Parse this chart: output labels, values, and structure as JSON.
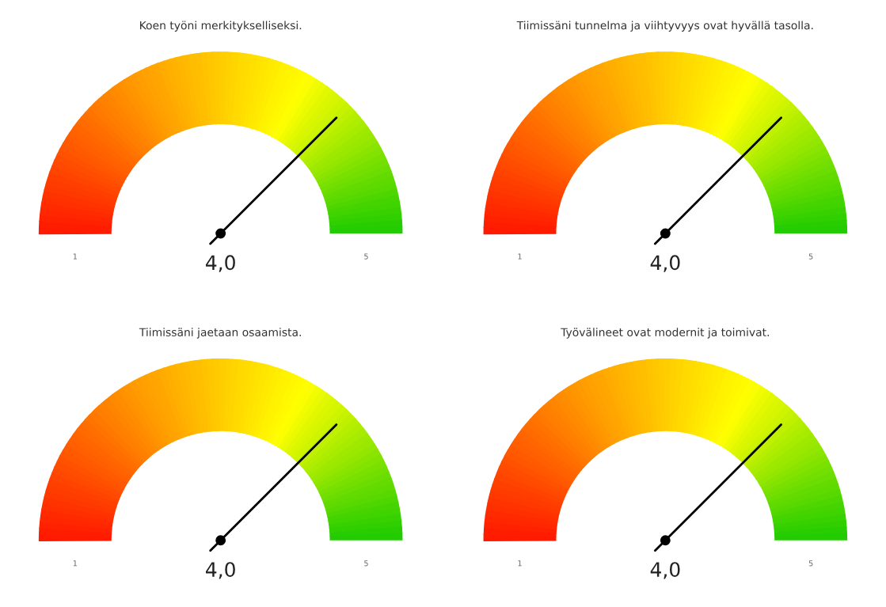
{
  "chart_data": [
    {
      "type": "other",
      "title": "Koen työni merkitykselliseksi.",
      "values": [
        4.0
      ],
      "value_labels": [
        "4,0"
      ],
      "annotations": [
        "1",
        "5"
      ]
    },
    {
      "type": "other",
      "title": "Tiimissäni tunnelma ja viihtyvyys ovat hyvällä tasolla.",
      "values": [
        4.0
      ],
      "value_labels": [
        "4,0"
      ],
      "annotations": [
        "1",
        "5"
      ]
    },
    {
      "type": "other",
      "title": "Tiimissäni jaetaan osaamista.",
      "values": [
        4.0
      ],
      "value_labels": [
        "4,0"
      ],
      "annotations": [
        "1",
        "5"
      ]
    },
    {
      "type": "other",
      "title": "Työvälineet ovat modernit ja toimivat.",
      "values": [
        4.0
      ],
      "value_labels": [
        "4,0"
      ],
      "annotations": [
        "1",
        "5"
      ]
    }
  ]
}
